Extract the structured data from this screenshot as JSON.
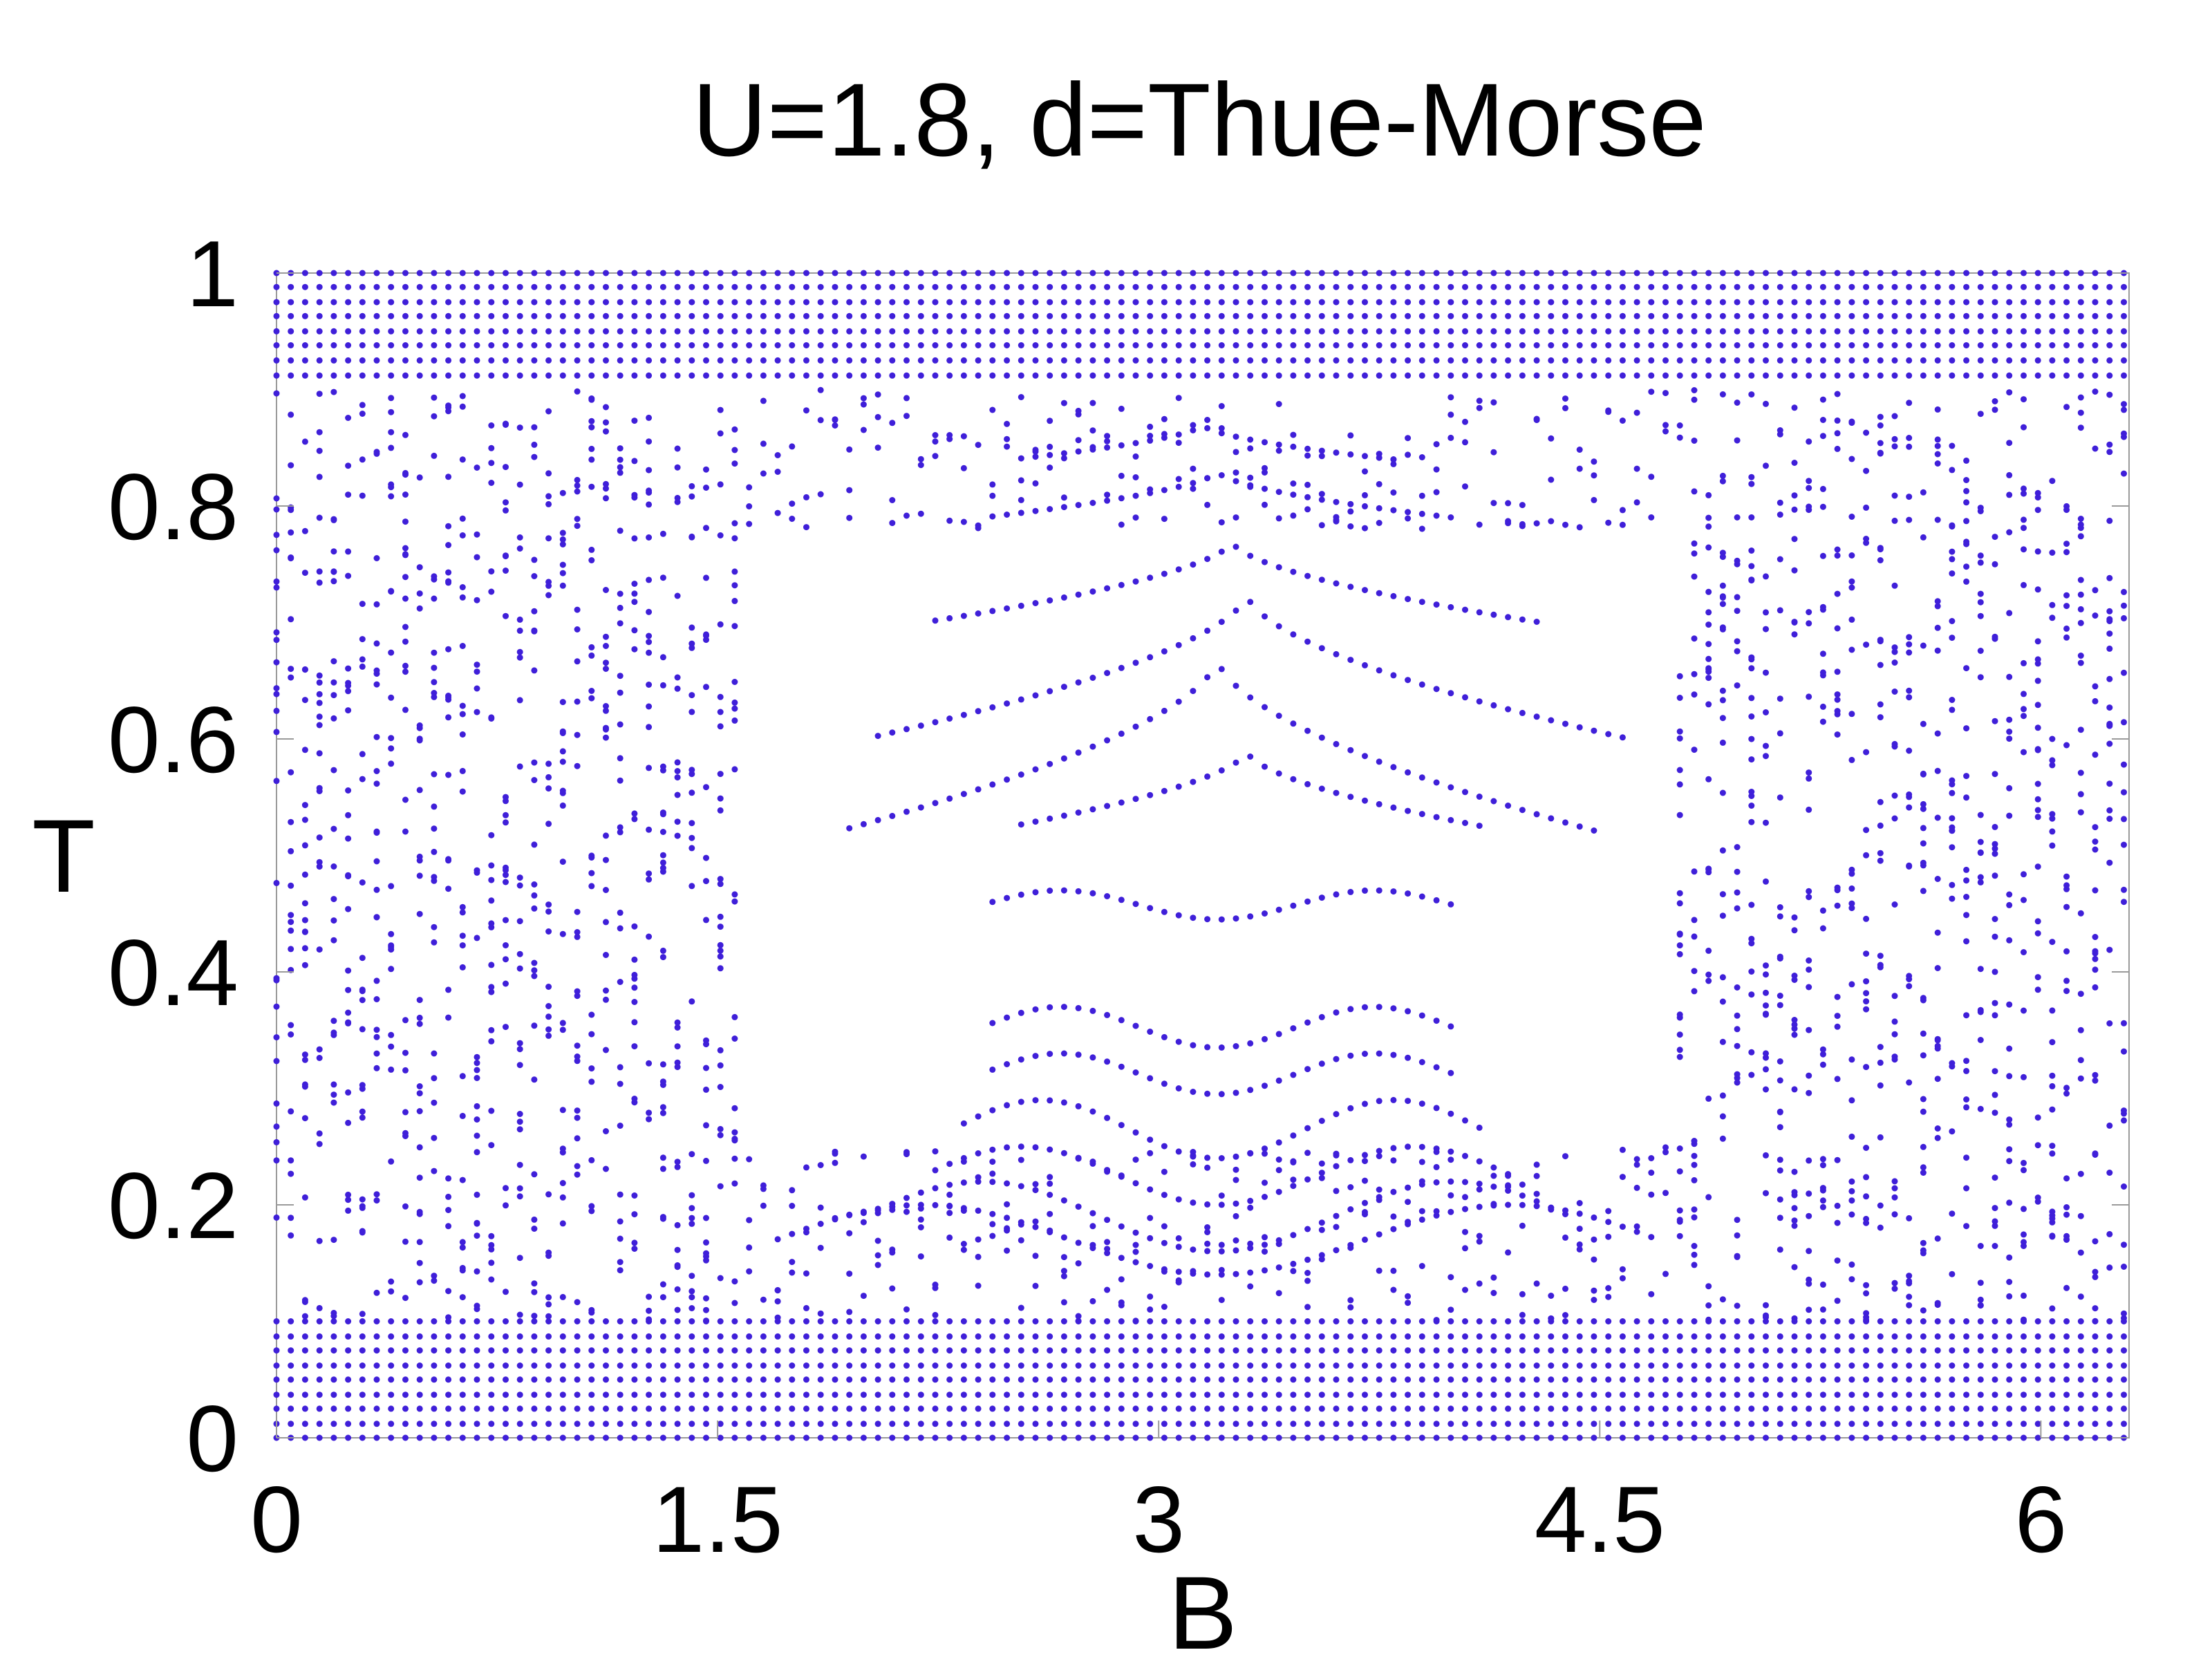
{
  "chart_data": {
    "type": "scatter",
    "title": "U=1.8, d=Thue-Morse",
    "xlabel": "B",
    "ylabel": "T",
    "xlim": [
      0,
      6.3
    ],
    "ylim": [
      0,
      1
    ],
    "x_ticks": [
      {
        "value": 0,
        "label": "0"
      },
      {
        "value": 1.5,
        "label": "1.5"
      },
      {
        "value": 3,
        "label": "3"
      },
      {
        "value": 4.5,
        "label": "4.5"
      },
      {
        "value": 6,
        "label": "6"
      }
    ],
    "y_ticks": [
      {
        "value": 0,
        "label": "0"
      },
      {
        "value": 0.2,
        "label": "0.2"
      },
      {
        "value": 0.4,
        "label": "0.4"
      },
      {
        "value": 0.6,
        "label": "0.6"
      },
      {
        "value": 0.8,
        "label": "0.8"
      },
      {
        "value": 1,
        "label": "1"
      }
    ],
    "grid": false,
    "legend": "none",
    "marker_color": "#3f1fd9",
    "b_samples": 130,
    "b_step": 0.0487,
    "series": [
      {
        "description_free": true,
        "bands": [
          {
            "b_range": [
              0,
              6.3
            ],
            "t_values": [
              0.0,
              0.012,
              0.025,
              0.037,
              0.05,
              0.062,
              0.075,
              0.087,
              0.1
            ]
          },
          {
            "b_range": [
              0,
              6.3
            ],
            "t_values": [
              1.0,
              0.988,
              0.975,
              0.963,
              0.95,
              0.938,
              0.925,
              0.912
            ]
          }
        ],
        "arcs": [
          {
            "b_range": [
              2.4,
              4.0
            ],
            "t_center": 0.445,
            "t_edge": 0.47,
            "shape": "w"
          },
          {
            "b_range": [
              2.5,
              4.1
            ],
            "t_center": 0.59,
            "t_edge": 0.525,
            "shape": "peak"
          },
          {
            "b_range": [
              1.9,
              4.5
            ],
            "t_center": 0.67,
            "t_edge": 0.52,
            "shape": "peak"
          },
          {
            "b_range": [
              2.0,
              4.6
            ],
            "t_center": 0.725,
            "t_edge": 0.6,
            "shape": "peak"
          },
          {
            "b_range": [
              2.2,
              4.3
            ],
            "t_center": 0.77,
            "t_edge": 0.7,
            "shape": "peak"
          },
          {
            "b_range": [
              2.4,
              4.0
            ],
            "t_center": 0.83,
            "t_edge": 0.79,
            "shape": "peak"
          },
          {
            "b_range": [
              2.5,
              3.8
            ],
            "t_center": 0.87,
            "t_edge": 0.84,
            "shape": "peak"
          },
          {
            "b_range": [
              2.4,
              4.0
            ],
            "t_center": 0.335,
            "t_edge": 0.37,
            "shape": "w"
          },
          {
            "b_range": [
              2.4,
              4.0
            ],
            "t_center": 0.295,
            "t_edge": 0.33,
            "shape": "w"
          },
          {
            "b_range": [
              2.3,
              4.1
            ],
            "t_center": 0.24,
            "t_edge": 0.29,
            "shape": "w"
          },
          {
            "b_range": [
              2.2,
              4.2
            ],
            "t_center": 0.2,
            "t_edge": 0.25,
            "shape": "w"
          },
          {
            "b_range": [
              2.0,
              4.4
            ],
            "t_center": 0.16,
            "t_edge": 0.22,
            "shape": "w"
          },
          {
            "b_range": [
              1.7,
              4.7
            ],
            "t_center": 0.14,
            "t_edge": 0.2,
            "shape": "w"
          }
        ],
        "noise_regions": [
          {
            "b_range": [
              0,
              1.6
            ],
            "t_range": [
              0.1,
              0.9
            ],
            "density": 0.55
          },
          {
            "b_range": [
              4.75,
              6.3
            ],
            "t_range": [
              0.1,
              0.9
            ],
            "density": 0.55
          },
          {
            "b_range": [
              1.6,
              4.75
            ],
            "t_range": [
              0.1,
              0.25
            ],
            "density": 0.45
          },
          {
            "b_range": [
              1.6,
              4.75
            ],
            "t_range": [
              0.78,
              0.9
            ],
            "density": 0.45
          }
        ]
      }
    ]
  }
}
